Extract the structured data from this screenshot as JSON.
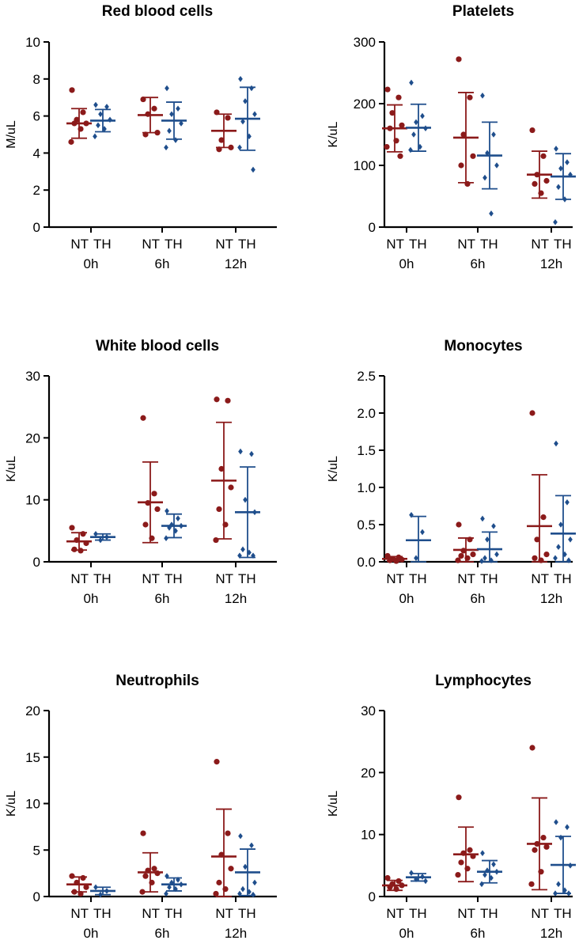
{
  "colors": {
    "NT": "#8b1a1a",
    "TH": "#1f4e8c",
    "axis": "#000000"
  },
  "chart_data": [
    {
      "type": "scatter",
      "title": "Red blood cells",
      "ylabel": "M/uL",
      "ylim": [
        0,
        10
      ],
      "yticks": [
        "0",
        "2",
        "4",
        "6",
        "8",
        "10"
      ],
      "group_labels": [
        "NT",
        "TH"
      ],
      "timepoints": [
        "0h",
        "6h",
        "12h"
      ],
      "series": [
        {
          "name": "NT",
          "marker": "circle",
          "points": [
            [
              7.4,
              6.2,
              5.8,
              5.6,
              5.6,
              5.3,
              4.6
            ],
            [
              6.9,
              6.4,
              6.1,
              5.1,
              5.0
            ],
            [
              6.2,
              5.9,
              4.7,
              4.3,
              4.2
            ]
          ],
          "mean": [
            5.6,
            6.05,
            5.2
          ],
          "sd": [
            0.8,
            0.95,
            0.9
          ]
        },
        {
          "name": "TH",
          "marker": "diamond",
          "points": [
            [
              6.6,
              6.5,
              6.1,
              5.8,
              5.5,
              5.3,
              4.9
            ],
            [
              7.5,
              6.4,
              6.1,
              5.6,
              5.2,
              4.7,
              4.3
            ],
            [
              8.0,
              7.5,
              6.8,
              6.1,
              5.7,
              4.9,
              4.3,
              3.1
            ]
          ],
          "mean": [
            5.75,
            5.75,
            5.85
          ],
          "sd": [
            0.6,
            1.0,
            1.7
          ]
        }
      ]
    },
    {
      "type": "scatter",
      "title": "Platelets",
      "ylabel": "K/uL",
      "ylim": [
        0,
        300
      ],
      "yticks": [
        "0",
        "100",
        "200",
        "300"
      ],
      "group_labels": [
        "NT",
        "TH"
      ],
      "timepoints": [
        "0h",
        "6h",
        "12h"
      ],
      "series": [
        {
          "name": "NT",
          "marker": "circle",
          "points": [
            [
              223,
              210,
              185,
              165,
              160,
              140,
              130,
              115
            ],
            [
              272,
              210,
              150,
              115,
              100,
              70
            ],
            [
              157,
              115,
              85,
              75,
              70,
              55
            ]
          ],
          "mean": [
            160,
            145,
            85
          ],
          "sd": [
            38,
            73,
            38
          ]
        },
        {
          "name": "TH",
          "marker": "diamond",
          "points": [
            [
              234,
              180,
              170,
              160,
              150,
              130,
              125
            ],
            [
              213,
              150,
              120,
              100,
              80,
              22
            ],
            [
              127,
              105,
              95,
              85,
              65,
              45,
              8
            ]
          ],
          "mean": [
            161,
            116,
            82
          ],
          "sd": [
            38,
            54,
            37
          ]
        }
      ]
    },
    {
      "type": "scatter",
      "title": "White blood cells",
      "ylabel": "K/uL",
      "ylim": [
        0,
        30
      ],
      "yticks": [
        "0",
        "10",
        "20",
        "30"
      ],
      "group_labels": [
        "NT",
        "TH"
      ],
      "timepoints": [
        "0h",
        "6h",
        "12h"
      ],
      "series": [
        {
          "name": "NT",
          "marker": "circle",
          "points": [
            [
              5.5,
              4.5,
              3.5,
              3.0,
              2.0,
              1.8
            ],
            [
              23.2,
              11.0,
              9.5,
              8.5,
              6.0,
              3.8
            ],
            [
              26.2,
              26.0,
              15.0,
              12.0,
              8.5,
              6.0,
              3.5
            ]
          ],
          "mean": [
            3.3,
            9.6,
            13.1
          ],
          "sd": [
            1.4,
            6.5,
            9.4
          ]
        },
        {
          "name": "TH",
          "marker": "diamond",
          "points": [
            [
              4.5,
              4.0,
              3.5
            ],
            [
              8.2,
              7.0,
              6.0,
              5.8,
              5.5,
              5.0,
              3.8
            ],
            [
              17.8,
              17.4,
              10.0,
              8.0,
              2.0,
              1.5,
              1.0,
              1.0
            ]
          ],
          "mean": [
            4.0,
            5.8,
            8.0
          ],
          "sd": [
            0.5,
            1.9,
            7.3
          ]
        }
      ]
    },
    {
      "type": "scatter",
      "title": "Monocytes",
      "ylabel": "K/uL",
      "ylim": [
        0,
        2.5
      ],
      "yticks": [
        "0.0",
        "0.5",
        "1.0",
        "1.5",
        "2.0",
        "2.5"
      ],
      "group_labels": [
        "NT",
        "TH"
      ],
      "timepoints": [
        "0h",
        "6h",
        "12h"
      ],
      "series": [
        {
          "name": "NT",
          "marker": "circle",
          "points": [
            [
              0.08,
              0.06,
              0.04,
              0.03,
              0.02,
              0.01
            ],
            [
              0.5,
              0.3,
              0.15,
              0.1,
              0.08,
              0.05,
              0.02
            ],
            [
              2.0,
              0.6,
              0.3,
              0.1,
              0.05,
              0.02
            ]
          ],
          "mean": [
            0.04,
            0.16,
            0.48
          ],
          "sd": [
            0.03,
            0.16,
            0.69
          ]
        },
        {
          "name": "TH",
          "marker": "diamond",
          "points": [
            [
              0.63,
              0.4,
              0.05
            ],
            [
              0.58,
              0.48,
              0.3,
              0.1,
              0.05,
              0.02,
              0.01
            ],
            [
              1.59,
              0.8,
              0.5,
              0.3,
              0.2,
              0.1,
              0.05,
              0.02
            ]
          ],
          "mean": [
            0.29,
            0.17,
            0.38
          ],
          "sd": [
            0.32,
            0.23,
            0.51
          ]
        }
      ]
    },
    {
      "type": "scatter",
      "title": "Neutrophils",
      "ylabel": "K/uL",
      "ylim": [
        0,
        20
      ],
      "yticks": [
        "0",
        "5",
        "10",
        "15",
        "20"
      ],
      "group_labels": [
        "NT",
        "TH"
      ],
      "timepoints": [
        "0h",
        "6h",
        "12h"
      ],
      "series": [
        {
          "name": "NT",
          "marker": "circle",
          "points": [
            [
              2.2,
              2.0,
              1.5,
              1.0,
              0.5,
              0.3
            ],
            [
              6.8,
              3.0,
              2.8,
              2.5,
              2.2,
              1.5,
              0.5
            ],
            [
              14.5,
              6.8,
              4.5,
              3.0,
              1.5,
              0.8,
              0.3
            ]
          ],
          "mean": [
            1.3,
            2.6,
            4.3
          ],
          "sd": [
            0.8,
            2.1,
            5.1
          ]
        },
        {
          "name": "TH",
          "marker": "diamond",
          "points": [
            [
              1.0,
              0.6,
              0.2
            ],
            [
              2.2,
              1.8,
              1.5,
              1.3,
              1.0,
              0.8,
              0.3
            ],
            [
              6.5,
              5.5,
              3.2,
              1.5,
              0.8,
              0.5,
              0.3,
              0.2
            ]
          ],
          "mean": [
            0.6,
            1.3,
            2.6
          ],
          "sd": [
            0.4,
            0.7,
            2.5
          ]
        }
      ]
    },
    {
      "type": "scatter",
      "title": "Lymphocytes",
      "ylabel": "K/uL",
      "ylim": [
        0,
        30
      ],
      "yticks": [
        "0",
        "10",
        "20",
        "30"
      ],
      "group_labels": [
        "NT",
        "TH"
      ],
      "timepoints": [
        "0h",
        "6h",
        "12h"
      ],
      "series": [
        {
          "name": "NT",
          "marker": "circle",
          "points": [
            [
              3.0,
              2.5,
              2.0,
              1.8,
              1.5,
              1.2
            ],
            [
              16.0,
              7.5,
              7.0,
              6.5,
              5.5,
              4.5,
              3.5
            ],
            [
              24.0,
              9.5,
              8.5,
              8.0,
              7.5,
              4.0,
              2.0
            ]
          ],
          "mean": [
            1.8,
            6.8,
            8.5
          ],
          "sd": [
            0.8,
            4.4,
            7.4
          ]
        },
        {
          "name": "TH",
          "marker": "diamond",
          "points": [
            [
              3.8,
              3.2,
              2.8,
              2.5
            ],
            [
              7.0,
              5.2,
              4.2,
              4.0,
              3.5,
              3.0,
              2.0
            ],
            [
              12.0,
              11.2,
              9.5,
              5.0,
              2.0,
              1.0,
              0.5,
              0.5
            ]
          ],
          "mean": [
            3.1,
            4.0,
            5.1
          ],
          "sd": [
            0.6,
            1.8,
            4.6
          ]
        }
      ]
    }
  ]
}
